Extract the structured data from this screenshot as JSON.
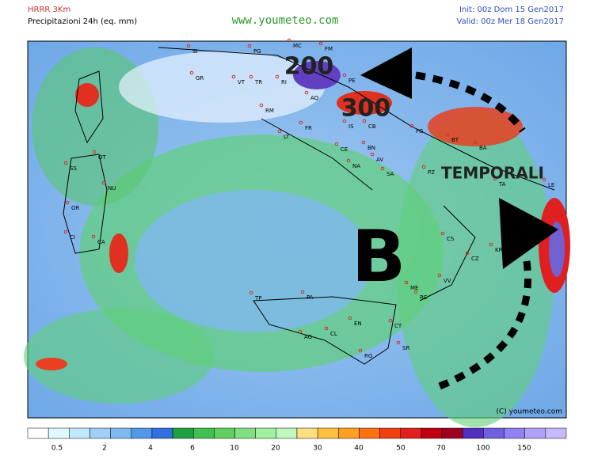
{
  "header": {
    "model": "HRRR 3Km",
    "field": "Precipitazioni 24h (eq. mm)",
    "site": "www.youmeteo.com",
    "init": "Init: 00z Dom 15 Gen2017",
    "valid": "Valid: 00z Mer 18 Gen2017"
  },
  "annotations": {
    "a200": "200",
    "a300": "300",
    "storms": "TEMPORALI",
    "low": "B",
    "copyright": "(C) youmeteo.com"
  },
  "places": [
    "SI",
    "PG",
    "GR",
    "VT",
    "TR",
    "RI",
    "AQ",
    "MC",
    "FM",
    "PE",
    "RM",
    "FR",
    "LT",
    "IS",
    "CB",
    "FG",
    "CE",
    "BN",
    "NA",
    "AV",
    "SA",
    "PZ",
    "BT",
    "BA",
    "TA",
    "LE",
    "CS",
    "KR",
    "CZ",
    "VV",
    "ME",
    "RC",
    "PA",
    "TP",
    "AG",
    "CL",
    "EN",
    "CT",
    "SR",
    "RG",
    "SS",
    "OT",
    "NU",
    "OR",
    "CA",
    "CI"
  ],
  "colorbar": {
    "labels": [
      "0.5",
      "2",
      "4",
      "6",
      "10",
      "20",
      "30",
      "40",
      "50",
      "70",
      "100",
      "150"
    ]
  }
}
